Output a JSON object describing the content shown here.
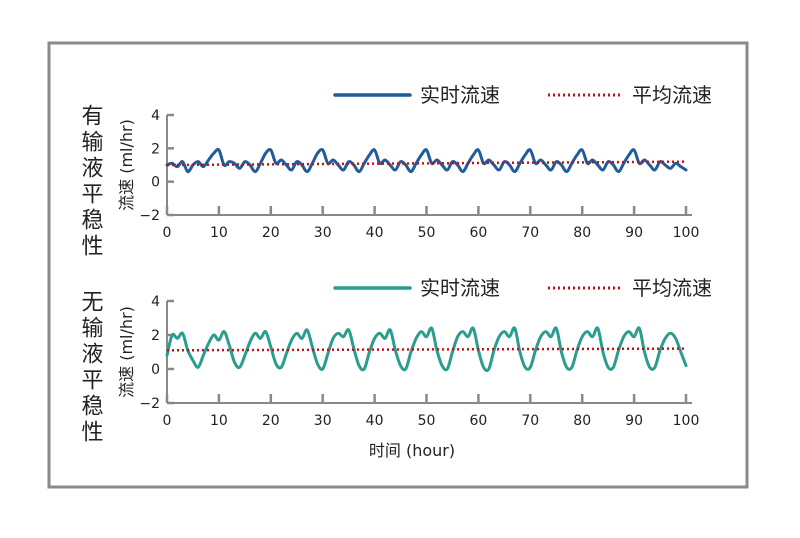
{
  "chart_data": [
    {
      "type": "line",
      "side_label": "有输液平稳性",
      "ylabel": "流速 (ml/hr)",
      "xlabel": "",
      "xlim": [
        0,
        100
      ],
      "ylim": [
        -2,
        4
      ],
      "x_ticks": [
        "0",
        "10",
        "20",
        "30",
        "40",
        "50",
        "60",
        "70",
        "80",
        "90",
        "100"
      ],
      "y_ticks": [
        "−2",
        "0",
        "2",
        "4"
      ],
      "grid": false,
      "legend_position": "top-right",
      "series": [
        {
          "name": "实时流速",
          "color": "#1f5c99",
          "style": "solid",
          "x": [
            0,
            1,
            2,
            3,
            4,
            5,
            6,
            7,
            8,
            9,
            10,
            11,
            12,
            13,
            14,
            15,
            16,
            17,
            18,
            19,
            20,
            21,
            22,
            23,
            24,
            25,
            26,
            27,
            28,
            29,
            30,
            31,
            32,
            33,
            34,
            35,
            36,
            37,
            38,
            39,
            40,
            41,
            42,
            43,
            44,
            45,
            46,
            47,
            48,
            49,
            50,
            51,
            52,
            53,
            54,
            55,
            56,
            57,
            58,
            59,
            60,
            61,
            62,
            63,
            64,
            65,
            66,
            67,
            68,
            69,
            70,
            71,
            72,
            73,
            74,
            75,
            76,
            77,
            78,
            79,
            80,
            81,
            82,
            83,
            84,
            85,
            86,
            87,
            88,
            89,
            90,
            91,
            92,
            93,
            94,
            95,
            96,
            97,
            98,
            99,
            100
          ],
          "values": [
            1.0,
            1.1,
            0.9,
            1.2,
            0.6,
            1.0,
            1.2,
            0.9,
            1.3,
            1.7,
            1.9,
            1.0,
            1.2,
            1.1,
            0.8,
            1.2,
            1.0,
            0.6,
            1.1,
            1.7,
            1.9,
            1.1,
            1.3,
            1.0,
            0.7,
            1.2,
            1.0,
            0.6,
            1.1,
            1.7,
            1.9,
            1.1,
            1.3,
            1.0,
            0.7,
            1.2,
            1.0,
            0.6,
            1.1,
            1.6,
            1.9,
            1.1,
            1.3,
            1.0,
            0.7,
            1.2,
            1.0,
            0.6,
            1.1,
            1.6,
            1.9,
            1.1,
            1.3,
            1.0,
            0.7,
            1.2,
            1.0,
            0.6,
            1.1,
            1.6,
            1.9,
            1.1,
            1.3,
            1.0,
            0.7,
            1.2,
            1.0,
            0.6,
            1.1,
            1.6,
            1.9,
            1.1,
            1.3,
            1.0,
            0.7,
            1.2,
            1.0,
            0.6,
            1.1,
            1.6,
            1.9,
            1.1,
            1.3,
            1.0,
            0.7,
            1.2,
            1.0,
            0.6,
            1.1,
            1.6,
            1.9,
            1.1,
            1.3,
            1.0,
            0.7,
            1.2,
            1.0,
            0.8,
            1.1,
            0.9,
            0.7
          ]
        },
        {
          "name": "平均流速",
          "color": "#c0121a",
          "style": "dotted",
          "x": [
            0,
            100
          ],
          "values": [
            1.0,
            1.2
          ]
        }
      ]
    },
    {
      "type": "line",
      "side_label": "无输液平稳性",
      "ylabel": "流速 (ml/hr)",
      "xlabel": "时间 (hour)",
      "xlim": [
        0,
        100
      ],
      "ylim": [
        -2,
        4
      ],
      "x_ticks": [
        "0",
        "10",
        "20",
        "30",
        "40",
        "50",
        "60",
        "70",
        "80",
        "90",
        "100"
      ],
      "y_ticks": [
        "−2",
        "0",
        "2",
        "4"
      ],
      "grid": false,
      "legend_position": "top-right",
      "series": [
        {
          "name": "实时流速",
          "color": "#2a9d8f",
          "style": "solid",
          "x": [
            0,
            1,
            2,
            3,
            4,
            5,
            6,
            7,
            8,
            9,
            10,
            11,
            12,
            13,
            14,
            15,
            16,
            17,
            18,
            19,
            20,
            21,
            22,
            23,
            24,
            25,
            26,
            27,
            28,
            29,
            30,
            31,
            32,
            33,
            34,
            35,
            36,
            37,
            38,
            39,
            40,
            41,
            42,
            43,
            44,
            45,
            46,
            47,
            48,
            49,
            50,
            51,
            52,
            53,
            54,
            55,
            56,
            57,
            58,
            59,
            60,
            61,
            62,
            63,
            64,
            65,
            66,
            67,
            68,
            69,
            70,
            71,
            72,
            73,
            74,
            75,
            76,
            77,
            78,
            79,
            80,
            81,
            82,
            83,
            84,
            85,
            86,
            87,
            88,
            89,
            90,
            91,
            92,
            93,
            94,
            95,
            96,
            97,
            98,
            99,
            100
          ],
          "values": [
            0.8,
            2.0,
            1.8,
            2.1,
            1.1,
            0.5,
            0.1,
            0.8,
            1.5,
            2.0,
            1.7,
            2.2,
            1.4,
            0.4,
            0.1,
            0.8,
            1.6,
            2.1,
            1.8,
            2.2,
            1.3,
            0.3,
            0.1,
            0.9,
            1.7,
            2.1,
            1.8,
            2.3,
            1.3,
            0.3,
            0.0,
            0.9,
            1.8,
            2.1,
            1.9,
            2.3,
            1.2,
            0.2,
            0.0,
            1.0,
            1.8,
            2.1,
            1.8,
            2.3,
            1.1,
            0.2,
            0.0,
            1.0,
            1.8,
            2.2,
            1.9,
            2.4,
            1.1,
            0.2,
            0.0,
            1.0,
            1.9,
            2.2,
            1.9,
            2.4,
            1.1,
            0.1,
            0.0,
            1.1,
            1.9,
            2.2,
            1.9,
            2.4,
            1.0,
            0.1,
            0.1,
            1.1,
            1.9,
            2.2,
            1.9,
            2.4,
            1.0,
            0.1,
            0.1,
            1.1,
            1.9,
            2.2,
            1.9,
            2.4,
            1.0,
            0.1,
            0.1,
            1.1,
            1.9,
            2.2,
            1.9,
            2.4,
            1.0,
            0.1,
            0.1,
            1.1,
            1.8,
            2.1,
            1.8,
            1.0,
            0.2
          ]
        },
        {
          "name": "平均流速",
          "color": "#c0121a",
          "style": "dotted",
          "x": [
            0,
            100
          ],
          "values": [
            1.1,
            1.2
          ]
        }
      ]
    }
  ]
}
